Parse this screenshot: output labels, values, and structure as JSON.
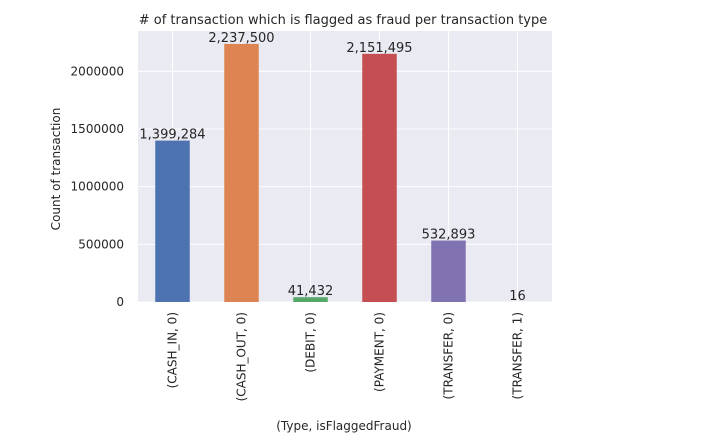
{
  "chart_data": {
    "type": "bar",
    "title": "# of transaction which is flagged as fraud per transaction type",
    "xlabel": "(Type, isFlaggedFraud)",
    "ylabel": "Count of transaction",
    "categories": [
      "(CASH_IN, 0)",
      "(CASH_OUT, 0)",
      "(DEBIT, 0)",
      "(PAYMENT, 0)",
      "(TRANSFER, 0)",
      "(TRANSFER, 1)"
    ],
    "values": [
      1399284,
      2237500,
      41432,
      2151495,
      532893,
      16
    ],
    "value_labels": [
      "1,399,284",
      "2,237,500",
      "41,432",
      "2,151,495",
      "532,893",
      "16"
    ],
    "colors": [
      "#4c72b0",
      "#dd8452",
      "#55a868",
      "#c44e52",
      "#8172b2",
      "#937860"
    ],
    "ylim": [
      0,
      2349375
    ],
    "yticks": [
      0,
      500000,
      1000000,
      1500000,
      2000000
    ],
    "ytick_labels": [
      "0",
      "500000",
      "1000000",
      "1500000",
      "2000000"
    ],
    "grid": true,
    "background": "#eaeaf2"
  }
}
